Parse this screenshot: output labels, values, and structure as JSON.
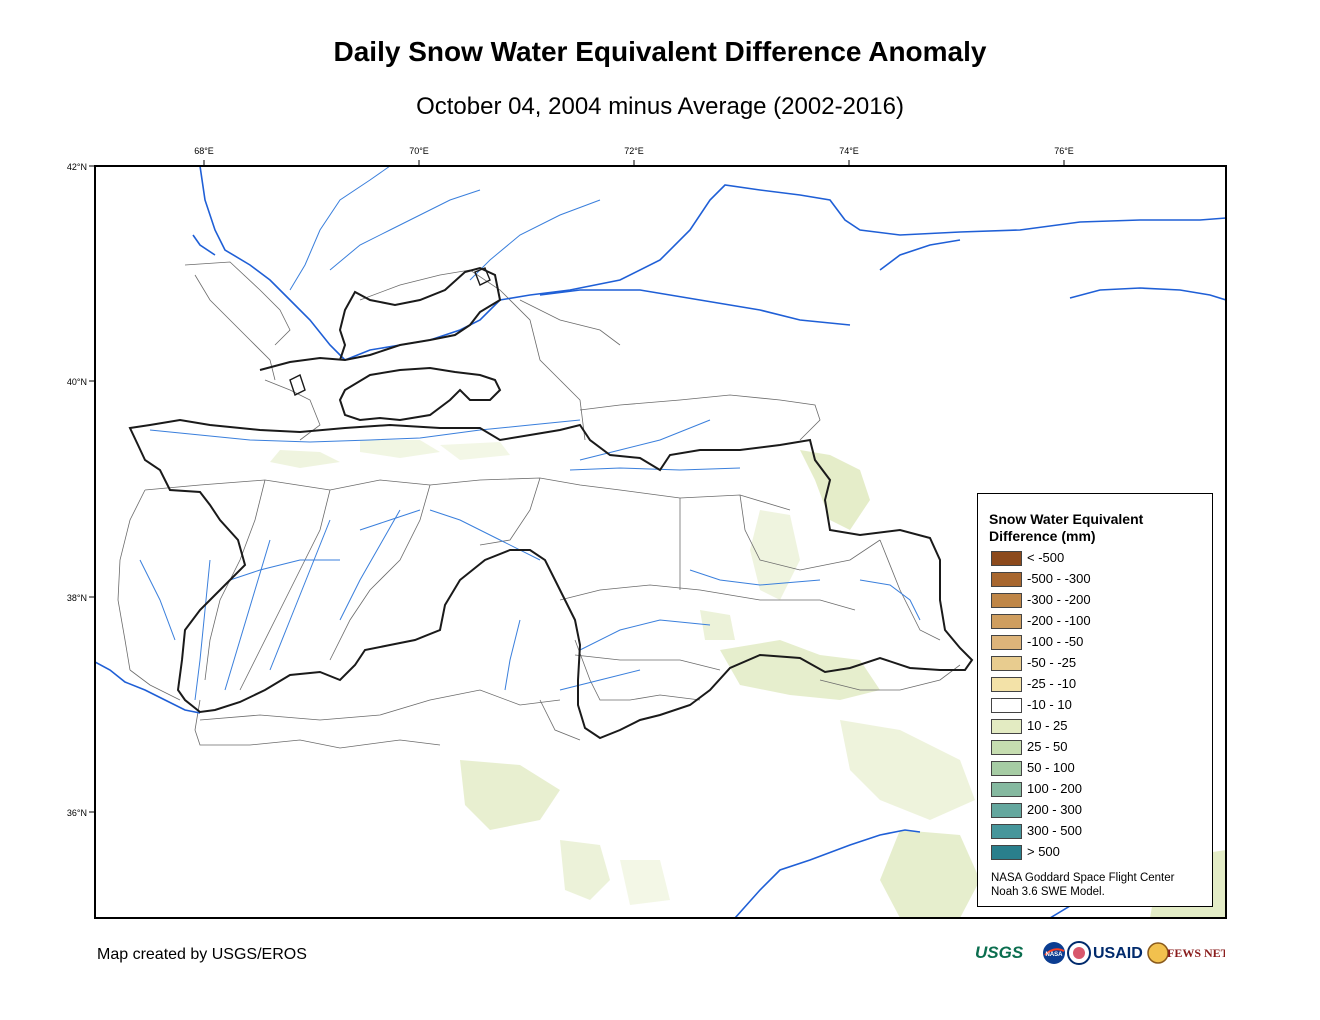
{
  "title": "Daily Snow Water Equivalent Difference Anomaly",
  "subtitle": "October 04, 2004 minus Average (2002-2016)",
  "axes": {
    "lon_ticks": [
      "68°E",
      "70°E",
      "72°E",
      "74°E",
      "76°E"
    ],
    "lat_ticks": [
      "42°N",
      "40°N",
      "38°N",
      "36°N"
    ]
  },
  "legend": {
    "title_line1": "Snow Water Equivalent",
    "title_line2": "Difference (mm)",
    "items": [
      {
        "label": "< -500",
        "color": "#8c4a1c"
      },
      {
        "label": "-500 - -300",
        "color": "#a8672f"
      },
      {
        "label": "-300 - -200",
        "color": "#bf8647"
      },
      {
        "label": "-200 - -100",
        "color": "#cf9e5f"
      },
      {
        "label": "-100 - -50",
        "color": "#ddb47a"
      },
      {
        "label": "-50 - -25",
        "color": "#e8cc8f"
      },
      {
        "label": "-25 - -10",
        "color": "#f3e2a8"
      },
      {
        "label": "-10 - 10",
        "color": "#ffffff"
      },
      {
        "label": "10 - 25",
        "color": "#e3ebc2"
      },
      {
        "label": "25 - 50",
        "color": "#c6ddb0"
      },
      {
        "label": "50 - 100",
        "color": "#a6cca4"
      },
      {
        "label": "100 - 200",
        "color": "#85b9a0"
      },
      {
        "label": "200 - 300",
        "color": "#64a79e"
      },
      {
        "label": "300 - 500",
        "color": "#46969b"
      },
      {
        "label": "> 500",
        "color": "#2a7f8c"
      }
    ],
    "credit_line1": "NASA Goddard Space Flight Center",
    "credit_line2": "Noah 3.6 SWE Model."
  },
  "footer": {
    "created_by": "Map created by USGS/EROS",
    "logos": [
      "USGS",
      "NASA",
      "USAID",
      "FEWS NET"
    ]
  },
  "colors": {
    "river": "#1f5fd6",
    "country_border": "#1a1a1a",
    "basin_border": "#666666",
    "snow_light": "#e0eac0"
  }
}
